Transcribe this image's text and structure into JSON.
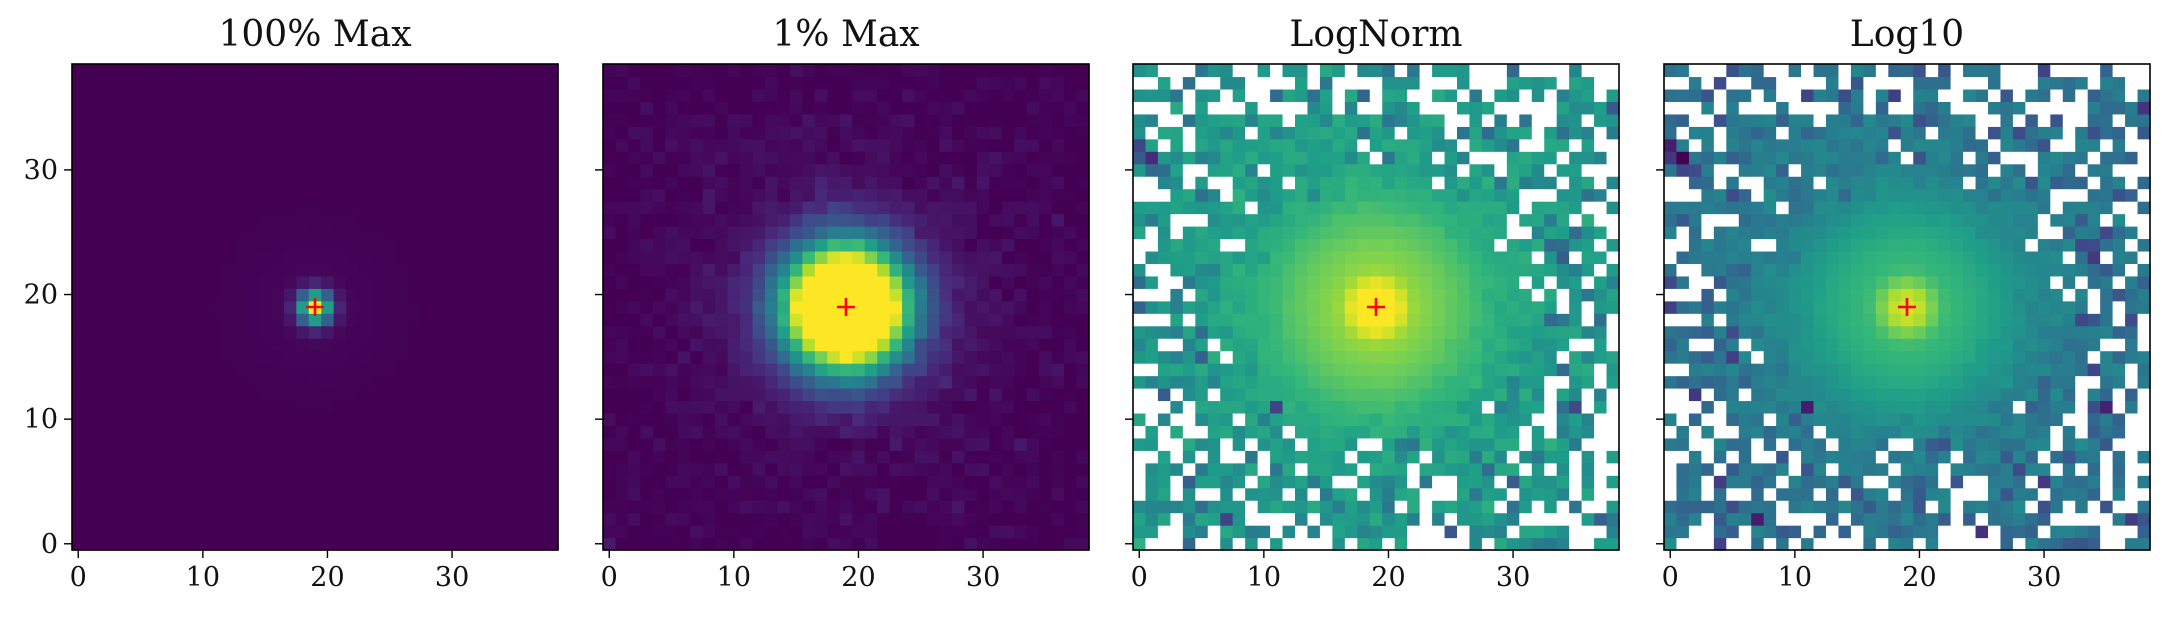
{
  "chart_data": [
    {
      "type": "heatmap",
      "title": "100% Max",
      "x_ticks": [
        0,
        10,
        20,
        30
      ],
      "y_ticks": [
        0,
        10,
        20,
        30
      ],
      "xlim": [
        -0.5,
        38.5
      ],
      "ylim": [
        -0.5,
        38.5
      ],
      "show_y_tick_labels": true,
      "grid": false,
      "colormap": "viridis",
      "normalization": "linear",
      "clip_percent_of_max": 100,
      "marker": {
        "symbol": "+",
        "x": 19,
        "y": 19,
        "color": "#ff0000"
      }
    },
    {
      "type": "heatmap",
      "title": "1% Max",
      "x_ticks": [
        0,
        10,
        20,
        30
      ],
      "y_ticks": [
        0,
        10,
        20,
        30
      ],
      "xlim": [
        -0.5,
        38.5
      ],
      "ylim": [
        -0.5,
        38.5
      ],
      "show_y_tick_labels": false,
      "grid": false,
      "colormap": "viridis",
      "normalization": "linear",
      "clip_percent_of_max": 1,
      "marker": {
        "symbol": "+",
        "x": 19,
        "y": 19,
        "color": "#ff0000"
      }
    },
    {
      "type": "heatmap",
      "title": "LogNorm",
      "x_ticks": [
        0,
        10,
        20,
        30
      ],
      "y_ticks": [
        0,
        10,
        20,
        30
      ],
      "xlim": [
        -0.5,
        38.5
      ],
      "ylim": [
        -0.5,
        38.5
      ],
      "show_y_tick_labels": false,
      "grid": false,
      "colormap": "viridis",
      "normalization": "log",
      "nonpositive_pixels": "white",
      "marker": {
        "symbol": "+",
        "x": 19,
        "y": 19,
        "color": "#ff0000"
      }
    },
    {
      "type": "heatmap",
      "title": "Log10",
      "x_ticks": [
        0,
        10,
        20,
        30
      ],
      "y_ticks": [
        0,
        10,
        20,
        30
      ],
      "xlim": [
        -0.5,
        38.5
      ],
      "ylim": [
        -0.5,
        38.5
      ],
      "show_y_tick_labels": false,
      "grid": false,
      "colormap": "viridis",
      "normalization": "log10",
      "nonpositive_pixels": "white",
      "marker": {
        "symbol": "+",
        "x": 19,
        "y": 19,
        "color": "#ff0000"
      }
    }
  ]
}
